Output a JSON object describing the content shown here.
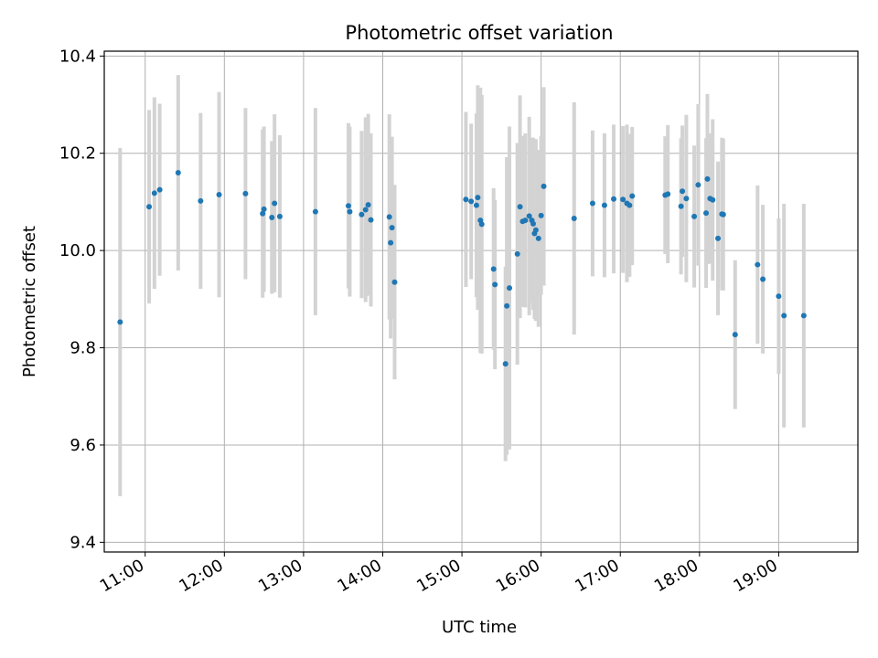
{
  "chart_data": {
    "type": "scatter",
    "title": "Photometric offset variation",
    "xlabel": "UTC time",
    "ylabel": "Photometric offset",
    "xlim": [
      "10:29",
      "20:00"
    ],
    "ylim": [
      9.38,
      10.41
    ],
    "x_ticks": [
      "11:00",
      "12:00",
      "13:00",
      "14:00",
      "15:00",
      "16:00",
      "17:00",
      "18:00",
      "19:00"
    ],
    "y_ticks": [
      9.4,
      9.6,
      9.8,
      10.0,
      10.2,
      10.4
    ],
    "grid": true,
    "colors": {
      "points": "#1f77b4",
      "errorbars": "#d3d3d3",
      "grid": "#b0b0b0"
    },
    "series": [
      {
        "x": [
          "10:41",
          "11:03",
          "11:07",
          "11:11",
          "11:25",
          "11:42",
          "11:56",
          "12:16",
          "12:29",
          "12:30",
          "12:36",
          "12:38",
          "12:42",
          "13:09",
          "13:34",
          "13:35",
          "13:44",
          "13:47",
          "13:49",
          "13:51",
          "14:05",
          "14:06",
          "14:07",
          "14:09",
          "15:03",
          "15:07",
          "15:11",
          "15:12",
          "15:14",
          "15:15",
          "15:24",
          "15:25",
          "15:33",
          "15:34",
          "15:36",
          "15:42",
          "15:44",
          "15:46",
          "15:48",
          "15:51",
          "15:53",
          "15:54",
          "15:55",
          "15:56",
          "15:58",
          "16:00",
          "16:02",
          "16:25",
          "16:39",
          "16:48",
          "16:55",
          "17:02",
          "17:05",
          "17:07",
          "17:09",
          "17:34",
          "17:36",
          "17:46",
          "17:47",
          "17:50",
          "17:56",
          "17:59",
          "18:05",
          "18:06",
          "18:08",
          "18:10",
          "18:14",
          "18:17",
          "18:18",
          "18:27",
          "18:44",
          "18:48",
          "19:00",
          "19:04",
          "19:19"
        ],
        "y": [
          9.853,
          10.09,
          10.118,
          10.125,
          10.16,
          10.102,
          10.115,
          10.117,
          10.076,
          10.085,
          10.068,
          10.097,
          10.07,
          10.08,
          10.092,
          10.08,
          10.074,
          10.084,
          10.094,
          10.063,
          10.069,
          10.016,
          10.047,
          9.935,
          10.105,
          10.101,
          10.093,
          10.109,
          10.062,
          10.054,
          9.962,
          9.93,
          9.767,
          9.886,
          9.923,
          9.993,
          10.09,
          10.06,
          10.062,
          10.071,
          10.062,
          10.055,
          10.035,
          10.042,
          10.025,
          10.072,
          10.132,
          10.066,
          10.097,
          10.093,
          10.106,
          10.105,
          10.097,
          10.093,
          10.112,
          10.114,
          10.116,
          10.091,
          10.122,
          10.107,
          10.07,
          10.135,
          10.077,
          10.147,
          10.107,
          10.104,
          10.025,
          10.075,
          10.074,
          9.827,
          9.971,
          9.941,
          9.906,
          9.866,
          9.866
        ],
        "error": [
          0.358,
          0.199,
          0.197,
          0.177,
          0.201,
          0.181,
          0.211,
          0.176,
          0.173,
          0.17,
          0.157,
          0.183,
          0.167,
          0.213,
          0.17,
          0.175,
          0.172,
          0.19,
          0.187,
          0.178,
          0.211,
          0.197,
          0.187,
          0.2,
          0.18,
          0.16,
          0.189,
          0.231,
          0.273,
          0.266,
          0.166,
          0.174,
          0.2,
          0.306,
          0.332,
          0.228,
          0.229,
          0.176,
          0.179,
          0.204,
          0.17,
          0.177,
          0.176,
          0.187,
          0.182,
          0.163,
          0.204,
          0.239,
          0.15,
          0.148,
          0.153,
          0.151,
          0.162,
          0.147,
          0.142,
          0.121,
          0.142,
          0.14,
          0.135,
          0.172,
          0.146,
          0.166,
          0.154,
          0.175,
          0.134,
          0.166,
          0.158,
          0.157,
          0.156,
          0.153,
          0.163,
          0.153,
          0.16,
          0.23,
          0.23
        ]
      }
    ]
  }
}
